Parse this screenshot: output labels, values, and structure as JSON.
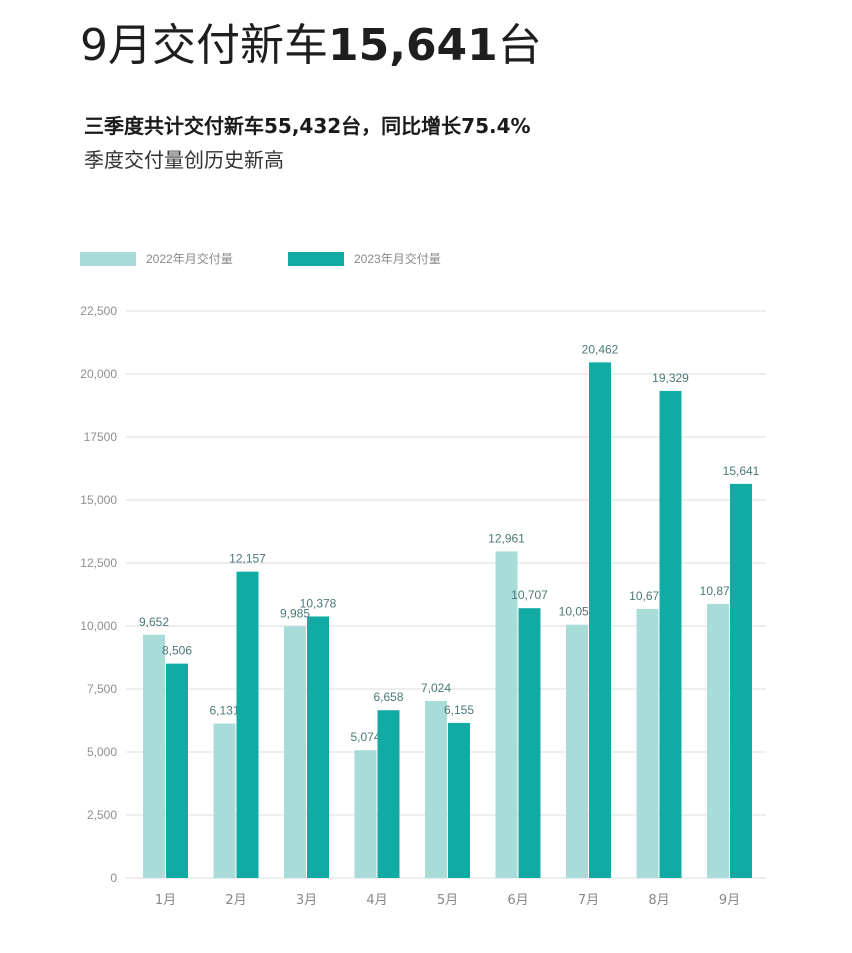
{
  "header": {
    "title_prefix": "9月交付新车",
    "title_number": "15,641",
    "title_suffix": "台",
    "subtitle": "三季度共计交付新车55,432台，同比增长75.4%",
    "subtitle2": "季度交付量创历史新高"
  },
  "colors": {
    "series_2022": "#a8dcd9",
    "series_2023": "#12aba4",
    "grid": "#dcdcdc"
  },
  "chart_data": {
    "type": "bar",
    "categories": [
      "1月",
      "2月",
      "3月",
      "4月",
      "5月",
      "6月",
      "7月",
      "8月",
      "9月"
    ],
    "series": [
      {
        "name": "2022年月交付量",
        "values": [
          9652,
          6131,
          9985,
          5074,
          7024,
          12961,
          10052,
          10677,
          10878
        ],
        "labels": [
          "9,652",
          "6,131",
          "9,985",
          "5,074",
          "7,024",
          "12,961",
          "10,052",
          "10,677",
          "10,878"
        ]
      },
      {
        "name": "2023年月交付量",
        "values": [
          8506,
          12157,
          10378,
          6658,
          6155,
          10707,
          20462,
          19329,
          15641
        ],
        "labels": [
          "8,506",
          "12,157",
          "10,378",
          "6,658",
          "6,155",
          "10,707",
          "20,462",
          "19,329",
          "15,641"
        ]
      }
    ],
    "ylim": [
      0,
      22500
    ],
    "yticks": [
      0,
      2500,
      5000,
      7500,
      10000,
      12500,
      15000,
      17500,
      20000,
      22500
    ],
    "ytick_labels": [
      "0",
      "2,500",
      "5,000",
      "7,500",
      "10,000",
      "12,500",
      "15,000",
      "17500",
      "20,000",
      "22,500"
    ],
    "grid": true,
    "legend_position": "top-left"
  }
}
